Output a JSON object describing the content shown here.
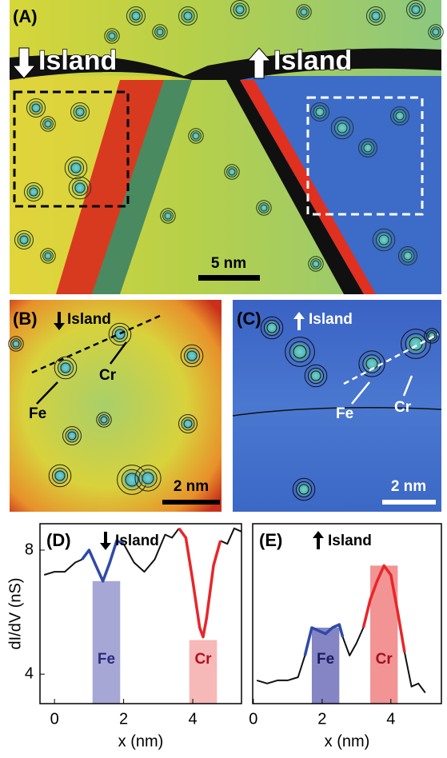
{
  "panels": [
    {
      "label": "(A)",
      "left_title": "Island",
      "right_title": "Island",
      "scale_bar": "5 nm"
    },
    {
      "label": "(B)",
      "title": "Island",
      "fe": "Fe",
      "cr": "Cr",
      "scale_bar": "2 nm"
    },
    {
      "label": "(C)",
      "title": "Island",
      "fe": "Fe",
      "cr": "Cr",
      "scale_bar": "2 nm"
    }
  ],
  "chart_data": [
    {
      "type": "line",
      "label": "(D)",
      "title": "Island",
      "xlabel": "x  (nm)",
      "ylabel": "dI/dV  (nS)",
      "xlim": [
        -0.42,
        5.41
      ],
      "ylim": [
        3.05,
        8.85
      ],
      "xticks": [
        0,
        2,
        4
      ],
      "yticks": [
        4,
        8
      ],
      "x": [
        -0.3,
        0,
        0.3,
        0.6,
        0.8,
        1.0,
        1.2,
        1.4,
        1.6,
        1.8,
        2.0,
        2.3,
        2.6,
        2.9,
        3.2,
        3.4,
        3.6,
        3.8,
        4.0,
        4.2,
        4.3,
        4.4,
        4.6,
        4.8,
        5.0,
        5.2,
        5.4
      ],
      "series": [
        {
          "color": "#111111",
          "values": [
            7.2,
            7.3,
            7.3,
            7.6,
            7.7,
            null,
            null,
            null,
            null,
            null,
            8.2,
            7.6,
            7.3,
            7.7,
            8.5,
            8.4,
            8.7,
            null,
            null,
            null,
            null,
            null,
            null,
            8.3,
            8.2,
            8.7,
            8.6
          ]
        },
        {
          "color": "#2f4aa8",
          "values": [
            null,
            null,
            null,
            null,
            7.7,
            8.0,
            7.5,
            7.0,
            7.6,
            8.3,
            8.2,
            null,
            null,
            null,
            null,
            null,
            null,
            null,
            null,
            null,
            null,
            null,
            null,
            null,
            null,
            null,
            null
          ]
        },
        {
          "color": "#e8262a",
          "values": [
            null,
            null,
            null,
            null,
            null,
            null,
            null,
            null,
            null,
            null,
            null,
            null,
            null,
            null,
            null,
            null,
            8.7,
            8.4,
            7.0,
            5.5,
            5.2,
            5.8,
            7.5,
            8.3,
            null,
            null,
            null
          ]
        }
      ],
      "bands": [
        {
          "label": "Fe",
          "x": [
            1.1,
            1.9
          ],
          "top": 7.0,
          "color": "#8a8ac8",
          "text_color": "#2a2a80"
        },
        {
          "label": "Cr",
          "x": [
            3.9,
            4.7
          ],
          "top": 5.1,
          "color": "#f4a0a0",
          "text_color": "#b01020"
        }
      ]
    },
    {
      "type": "line",
      "label": "(E)",
      "title": "Island",
      "xlabel": "x  (nm)",
      "xlim": [
        -0.02,
        5.47
      ],
      "ylim": [
        3.05,
        8.85
      ],
      "xticks": [
        0,
        2,
        4
      ],
      "x": [
        0.1,
        0.4,
        0.7,
        1.0,
        1.3,
        1.5,
        1.7,
        1.9,
        2.1,
        2.3,
        2.5,
        2.6,
        2.8,
        3.0,
        3.2,
        3.4,
        3.6,
        3.8,
        4.0,
        4.2,
        4.4,
        4.6,
        4.8,
        5.0
      ],
      "series": [
        {
          "color": "#111111",
          "values": [
            3.8,
            3.7,
            3.8,
            3.8,
            3.9,
            4.6,
            null,
            null,
            null,
            null,
            null,
            5.2,
            4.6,
            5.0,
            5.5,
            null,
            null,
            null,
            null,
            null,
            4.7,
            3.6,
            3.7,
            3.4
          ]
        },
        {
          "color": "#2f4aa8",
          "values": [
            null,
            null,
            null,
            null,
            null,
            4.6,
            5.5,
            5.4,
            5.3,
            5.5,
            5.6,
            5.2,
            null,
            null,
            null,
            null,
            null,
            null,
            null,
            null,
            null,
            null,
            null,
            null
          ]
        },
        {
          "color": "#e8262a",
          "values": [
            null,
            null,
            null,
            null,
            null,
            null,
            null,
            null,
            null,
            null,
            null,
            null,
            null,
            null,
            5.5,
            6.4,
            7.0,
            7.5,
            7.2,
            6.0,
            4.7,
            null,
            null,
            null
          ]
        }
      ],
      "bands": [
        {
          "label": "Fe",
          "x": [
            1.7,
            2.5
          ],
          "top": 5.5,
          "color": "#5c5cb0",
          "text_color": "#1a1a60"
        },
        {
          "label": "Cr",
          "x": [
            3.4,
            4.2
          ],
          "top": 7.5,
          "color": "#ee7070",
          "text_color": "#a01020"
        }
      ]
    }
  ]
}
